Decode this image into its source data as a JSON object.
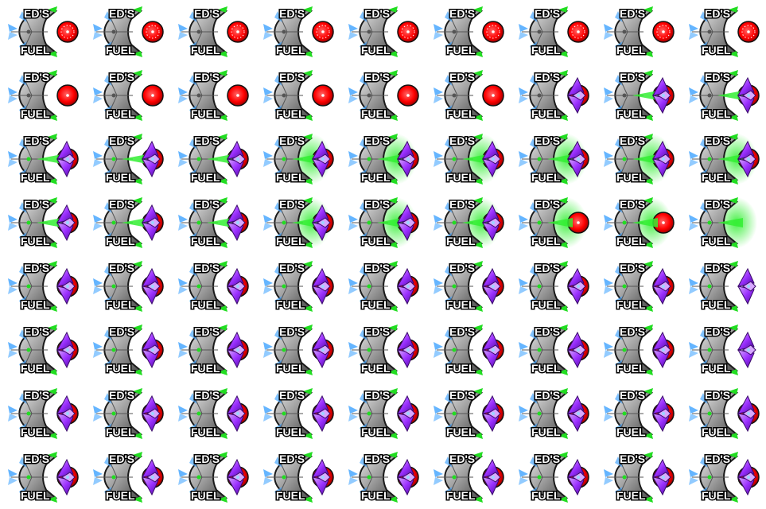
{
  "sprite_sheet": {
    "rows": 8,
    "columns": 9,
    "frame_count": 72,
    "brand_top": "ED'S",
    "brand_bottom": "FUEL",
    "colors": {
      "background": "#ffffff",
      "hull_dark": "#4a4a4a",
      "hull_mid": "#9a9a9a",
      "hull_light": "#e4e4e4",
      "glass": "#4aa8ff",
      "core_red": "#ff0000",
      "core_dark": "#8a0000",
      "crystal": "#9b30ff",
      "crystal_light": "#d8a8ff",
      "beam_green": "#33ee33",
      "light_green": "#22dd22"
    },
    "icons": [
      "fuel-pod-sprite",
      "red-core-orb",
      "purple-crystal-icon",
      "green-beam-icon"
    ]
  }
}
